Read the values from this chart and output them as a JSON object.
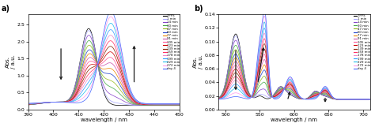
{
  "panel_a": {
    "xlabel": "wavelength / nm",
    "ylabel": "Abs.\n/ a.u.",
    "xlim": [
      390,
      450
    ],
    "ylim": [
      0.0,
      2.8
    ],
    "yticks": [
      0.0,
      0.5,
      1.0,
      1.5,
      2.0,
      2.5
    ],
    "xticks": [
      390,
      400,
      410,
      420,
      430,
      440,
      450
    ],
    "label": "a)"
  },
  "panel_b": {
    "xlabel": "wavelength / nm",
    "ylabel": "Abs.\n/ a.u.",
    "xlim": [
      490,
      710
    ],
    "ylim": [
      0.0,
      0.14
    ],
    "yticks": [
      0.0,
      0.02,
      0.04,
      0.06,
      0.08,
      0.1,
      0.12,
      0.14
    ],
    "xticks": [
      500,
      550,
      600,
      650,
      700
    ],
    "label": "b)"
  },
  "legend_labels": [
    "TPPS",
    "1 min",
    "14 min",
    "30 min",
    "47 min",
    "60 min",
    "77 min",
    "91 min",
    "105 min",
    "123 min",
    "139 min",
    "159 min",
    "178 min",
    "199 min",
    "229 min",
    "272 min",
    "day 4"
  ],
  "colors": [
    "#000000",
    "#aaaaff",
    "#8844cc",
    "#44aa44",
    "#99bb22",
    "#2244cc",
    "#ee8800",
    "#cc55aa",
    "#ff5599",
    "#cc0000",
    "#882200",
    "#ff3366",
    "#ee88cc",
    "#3399ff",
    "#22bbee",
    "#ff99ee",
    "#4466ff"
  ],
  "background_color": "#ffffff",
  "arrow_color": "#1a1a1a"
}
